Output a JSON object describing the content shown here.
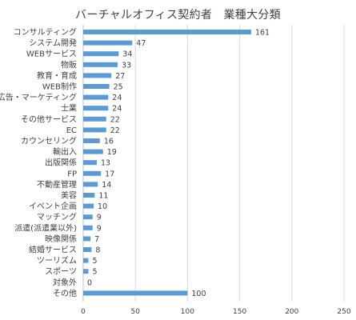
{
  "chart_data": {
    "type": "bar",
    "orientation": "horizontal",
    "title": "バーチャルオフィス契約者　業種大分類",
    "categories": [
      "コンサルティング",
      "システム開発",
      "WEBサービス",
      "物販",
      "教育・育成",
      "WEB制作",
      "広告・マーケティング",
      "士業",
      "その他サービス",
      "EC",
      "カウンセリング",
      "輸出入",
      "出版関係",
      "FP",
      "不動産管理",
      "美容",
      "イベント企画",
      "マッチング",
      "派遣(派遣業以外)",
      "映像関係",
      "結婚サービス",
      "ツーリズム",
      "スポーツ",
      "対象外",
      "その他"
    ],
    "values": [
      161,
      47,
      34,
      33,
      27,
      25,
      24,
      24,
      22,
      22,
      16,
      19,
      13,
      17,
      14,
      11,
      10,
      9,
      9,
      7,
      8,
      5,
      5,
      0,
      100
    ],
    "xlim": [
      0,
      250
    ],
    "xticks": [
      "0",
      "50",
      "100",
      "150",
      "200",
      "250"
    ],
    "grid": true,
    "data_labels": true,
    "bar_color": "#5B9BD5",
    "grid_color": "#D9D9D9",
    "text_color": "#404040"
  }
}
